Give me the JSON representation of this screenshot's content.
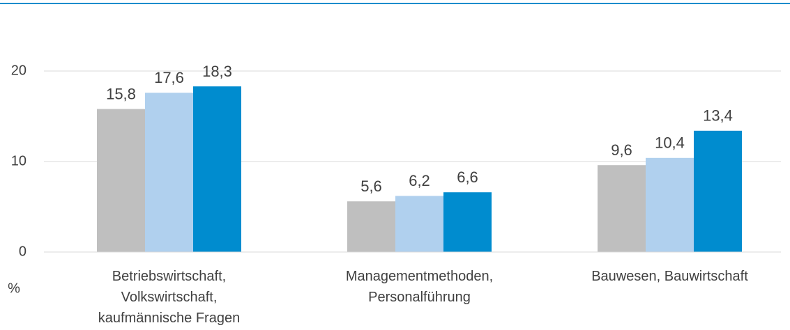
{
  "chart_data": {
    "type": "bar",
    "categories": [
      "Betriebswirtschaft,\nVolkswirtschaft,\nkaufmännische Fragen",
      "Managementmethoden,\nPersonalführung",
      "Bauwesen, Bauwirtschaft"
    ],
    "series": [
      {
        "color": "#bfbfbf",
        "values": [
          15.8,
          5.6,
          9.6
        ],
        "value_labels": [
          "15,8",
          "5,6",
          "9,6"
        ]
      },
      {
        "color": "#b0d0ee",
        "values": [
          17.6,
          6.2,
          10.4
        ],
        "value_labels": [
          "17,6",
          "6,2",
          "10,4"
        ]
      },
      {
        "color": "#008ccf",
        "values": [
          18.3,
          6.6,
          13.4
        ],
        "value_labels": [
          "18,3",
          "6,6",
          "13,4"
        ]
      }
    ],
    "y_label": "%",
    "ylim": [
      0,
      24
    ],
    "yticks": [
      0,
      10,
      20
    ],
    "grid": true
  }
}
